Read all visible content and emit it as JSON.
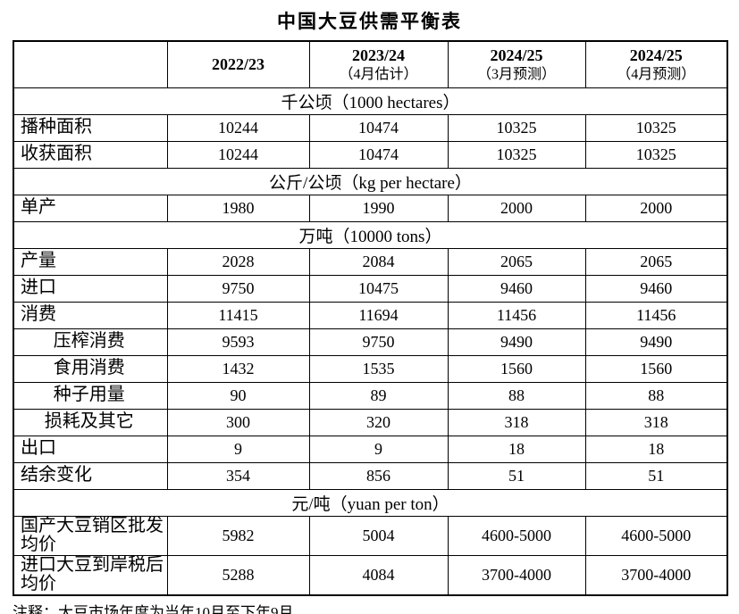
{
  "page": {
    "title": "中国大豆供需平衡表",
    "footnote": "注释：大豆市场年度为当年10月至下年9月。"
  },
  "colors": {
    "text": "#000000",
    "border": "#000000",
    "background": "#ffffff"
  },
  "table": {
    "header": {
      "corner": "",
      "columns": [
        {
          "year": "2022/23",
          "note": ""
        },
        {
          "year": "2023/24",
          "note": "（4月估计）"
        },
        {
          "year": "2024/25",
          "note": "（3月预测）"
        },
        {
          "year": "2024/25",
          "note": "（4月预测）"
        }
      ]
    },
    "rows": [
      {
        "type": "section",
        "label": "千公顷（1000 hectares）"
      },
      {
        "type": "data",
        "label": "播种面积",
        "indent": false,
        "tall": false,
        "values": [
          "10244",
          "10474",
          "10325",
          "10325"
        ]
      },
      {
        "type": "data",
        "label": "收获面积",
        "indent": false,
        "tall": false,
        "values": [
          "10244",
          "10474",
          "10325",
          "10325"
        ]
      },
      {
        "type": "section",
        "label": "公斤/公顷（kg per hectare）"
      },
      {
        "type": "data",
        "label": "单产",
        "indent": false,
        "tall": false,
        "values": [
          "1980",
          "1990",
          "2000",
          "2000"
        ]
      },
      {
        "type": "section",
        "label": "万吨（10000 tons）"
      },
      {
        "type": "data",
        "label": "产量",
        "indent": false,
        "tall": false,
        "values": [
          "2028",
          "2084",
          "2065",
          "2065"
        ]
      },
      {
        "type": "data",
        "label": "进口",
        "indent": false,
        "tall": false,
        "values": [
          "9750",
          "10475",
          "9460",
          "9460"
        ]
      },
      {
        "type": "data",
        "label": "消费",
        "indent": false,
        "tall": false,
        "values": [
          "11415",
          "11694",
          "11456",
          "11456"
        ]
      },
      {
        "type": "data",
        "label": "压榨消费",
        "indent": true,
        "tall": false,
        "values": [
          "9593",
          "9750",
          "9490",
          "9490"
        ]
      },
      {
        "type": "data",
        "label": "食用消费",
        "indent": true,
        "tall": false,
        "values": [
          "1432",
          "1535",
          "1560",
          "1560"
        ]
      },
      {
        "type": "data",
        "label": "种子用量",
        "indent": true,
        "tall": false,
        "values": [
          "90",
          "89",
          "88",
          "88"
        ]
      },
      {
        "type": "data",
        "label": "损耗及其它",
        "indent": true,
        "tall": false,
        "values": [
          "300",
          "320",
          "318",
          "318"
        ]
      },
      {
        "type": "data",
        "label": "出口",
        "indent": false,
        "tall": false,
        "values": [
          "9",
          "9",
          "18",
          "18"
        ]
      },
      {
        "type": "data",
        "label": "结余变化",
        "indent": false,
        "tall": false,
        "values": [
          "354",
          "856",
          "51",
          "51"
        ]
      },
      {
        "type": "section",
        "label": "元/吨（yuan per ton）"
      },
      {
        "type": "data",
        "label": "国产大豆销区批发均价",
        "indent": false,
        "tall": true,
        "values": [
          "5982",
          "5004",
          "4600-5000",
          "4600-5000"
        ]
      },
      {
        "type": "data",
        "label": "进口大豆到岸税后均价",
        "indent": false,
        "tall": true,
        "values": [
          "5288",
          "4084",
          "3700-4000",
          "3700-4000"
        ]
      }
    ]
  }
}
